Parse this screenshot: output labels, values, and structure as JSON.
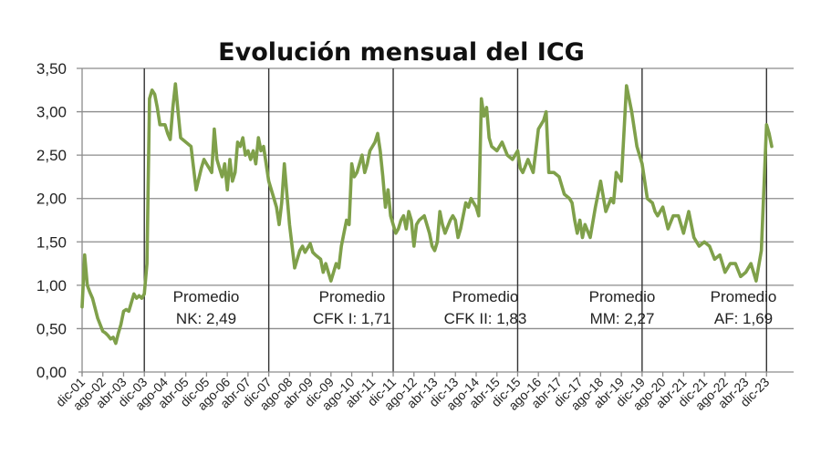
{
  "chart_data": {
    "type": "line",
    "title": "Evolución mensual del ICG",
    "xlabel": "",
    "ylabel": "",
    "ylim": [
      0,
      3.5
    ],
    "yticks": [
      "0,00",
      "0,50",
      "1,00",
      "1,50",
      "2,00",
      "2,50",
      "3,00",
      "3,50"
    ],
    "ytick_values": [
      0,
      0.5,
      1.0,
      1.5,
      2.0,
      2.5,
      3.0,
      3.5
    ],
    "grid": true,
    "legend": "none",
    "x_tick_labels": [
      "dic-01",
      "ago-02",
      "abr-03",
      "dic-03",
      "ago-04",
      "abr-05",
      "dic-05",
      "ago-06",
      "abr-07",
      "dic-07",
      "ago-08",
      "abr-09",
      "dic-09",
      "ago-10",
      "abr-11",
      "dic-11",
      "ago-12",
      "abr-13",
      "dic-13",
      "ago-14",
      "abr-15",
      "dic-15",
      "ago-16",
      "abr-17",
      "dic-17",
      "ago-18",
      "abr-19",
      "dic-19",
      "ago-20",
      "abr-21",
      "dic-21",
      "ago-22",
      "abr-23",
      "dic-23"
    ],
    "x_tick_spacing_months": 8,
    "period_dividers": [
      "dic-03",
      "dic-07",
      "dic-11",
      "dic-15",
      "dic-19",
      "dic-23"
    ],
    "annotations": [
      {
        "line1": "Promedio",
        "line2": "NK: 2,49",
        "period": "dic-03 a dic-07",
        "average": 2.49
      },
      {
        "line1": "Promedio",
        "line2": "CFK I: 1,71",
        "period": "dic-07 a dic-11",
        "average": 1.71
      },
      {
        "line1": "Promedio",
        "line2": "CFK II: 1,83",
        "period": "dic-11 a dic-15",
        "average": 1.83
      },
      {
        "line1": "Promedio",
        "line2": "MM: 2,27",
        "period": "dic-15 a dic-19",
        "average": 2.27
      },
      {
        "line1": "Promedio",
        "line2": "AF: 1,69",
        "period": "dic-19 a dic-23",
        "average": 1.69
      }
    ],
    "series": [
      {
        "name": "ICG",
        "color": "#7fa04a",
        "x_months_from_dic01": [
          0,
          1,
          2,
          3,
          4,
          6,
          8,
          9,
          10,
          11,
          12,
          13,
          14,
          15,
          16,
          17,
          18,
          19,
          20,
          21,
          22,
          23,
          24,
          25,
          26,
          27,
          28,
          29,
          30,
          32,
          33,
          34,
          35,
          36,
          37,
          38,
          40,
          42,
          44,
          46,
          47,
          48,
          49,
          50,
          51,
          52,
          53,
          54,
          55,
          56,
          57,
          58,
          59,
          60,
          61,
          62,
          63,
          64,
          65,
          66,
          67,
          68,
          69,
          70,
          72,
          74,
          75,
          76,
          77,
          78,
          79,
          80,
          82,
          84,
          85,
          86,
          88,
          89,
          90,
          92,
          93,
          94,
          96,
          98,
          99,
          100,
          101,
          102,
          103,
          104,
          105,
          106,
          108,
          109,
          110,
          111,
          112,
          113,
          114,
          115,
          116,
          117,
          118,
          119,
          120,
          121,
          122,
          123,
          124,
          125,
          126,
          127,
          128,
          129,
          130,
          132,
          134,
          135,
          136,
          137,
          138,
          139,
          140,
          142,
          143,
          144,
          145,
          146,
          148,
          149,
          150,
          152,
          153,
          154,
          155,
          156,
          157,
          158,
          160,
          162,
          164,
          166,
          168,
          169,
          170,
          172,
          174,
          176,
          178,
          179,
          180,
          182,
          184,
          186,
          188,
          189,
          190,
          191,
          192,
          193,
          194,
          196,
          198,
          200,
          202,
          204,
          205,
          206,
          208,
          210,
          212,
          214,
          216,
          218,
          220,
          221,
          222,
          224,
          226,
          228,
          230,
          232,
          234,
          236,
          238,
          240,
          242,
          244,
          246,
          248,
          250,
          252,
          254,
          256,
          258,
          260,
          262,
          264,
          265,
          266,
          267,
          268,
          269,
          270,
          271,
          272,
          273
        ],
        "values": [
          0.75,
          1.35,
          1.0,
          0.92,
          0.85,
          0.62,
          0.47,
          0.45,
          0.42,
          0.38,
          0.4,
          0.33,
          0.45,
          0.55,
          0.7,
          0.72,
          0.7,
          0.8,
          0.9,
          0.85,
          0.88,
          0.85,
          0.9,
          1.25,
          3.15,
          3.25,
          3.2,
          3.05,
          2.85,
          2.85,
          2.75,
          2.68,
          3.05,
          3.32,
          3.0,
          2.7,
          2.65,
          2.6,
          2.1,
          2.35,
          2.45,
          2.4,
          2.35,
          2.3,
          2.8,
          2.45,
          2.35,
          2.25,
          2.4,
          2.1,
          2.45,
          2.2,
          2.3,
          2.65,
          2.6,
          2.7,
          2.5,
          2.55,
          2.45,
          2.55,
          2.4,
          2.7,
          2.55,
          2.6,
          2.2,
          2.0,
          1.9,
          1.7,
          1.95,
          2.4,
          2.05,
          1.7,
          1.2,
          1.4,
          1.45,
          1.38,
          1.48,
          1.38,
          1.35,
          1.3,
          1.15,
          1.25,
          1.05,
          1.25,
          1.2,
          1.45,
          1.6,
          1.75,
          1.7,
          2.4,
          2.25,
          2.3,
          2.5,
          2.3,
          2.4,
          2.55,
          2.6,
          2.65,
          2.75,
          2.55,
          2.25,
          1.9,
          2.1,
          1.8,
          1.7,
          1.6,
          1.65,
          1.75,
          1.8,
          1.65,
          1.85,
          1.75,
          1.45,
          1.7,
          1.75,
          1.8,
          1.6,
          1.45,
          1.4,
          1.5,
          1.85,
          1.7,
          1.6,
          1.75,
          1.8,
          1.75,
          1.55,
          1.65,
          1.95,
          1.9,
          2.0,
          1.9,
          1.8,
          3.15,
          2.95,
          3.05,
          2.7,
          2.6,
          2.55,
          2.65,
          2.5,
          2.45,
          2.55,
          2.35,
          2.3,
          2.45,
          2.3,
          2.8,
          2.9,
          3.0,
          2.3,
          2.3,
          2.25,
          2.05,
          2.0,
          1.95,
          1.75,
          1.6,
          1.75,
          1.55,
          1.7,
          1.55,
          1.9,
          2.2,
          1.85,
          2.0,
          1.95,
          2.3,
          2.2,
          3.3,
          3.0,
          2.6,
          2.4,
          2.0,
          1.95,
          1.85,
          1.8,
          1.9,
          1.65,
          1.8,
          1.8,
          1.6,
          1.85,
          1.55,
          1.45,
          1.5,
          1.45,
          1.3,
          1.35,
          1.15,
          1.25,
          1.25,
          1.1,
          1.15,
          1.25,
          1.05,
          1.4,
          2.85,
          2.75,
          2.6
        ],
        "values_note": "approximate reading from plot; x spacing ≈ 2.84 px per month"
      }
    ]
  }
}
